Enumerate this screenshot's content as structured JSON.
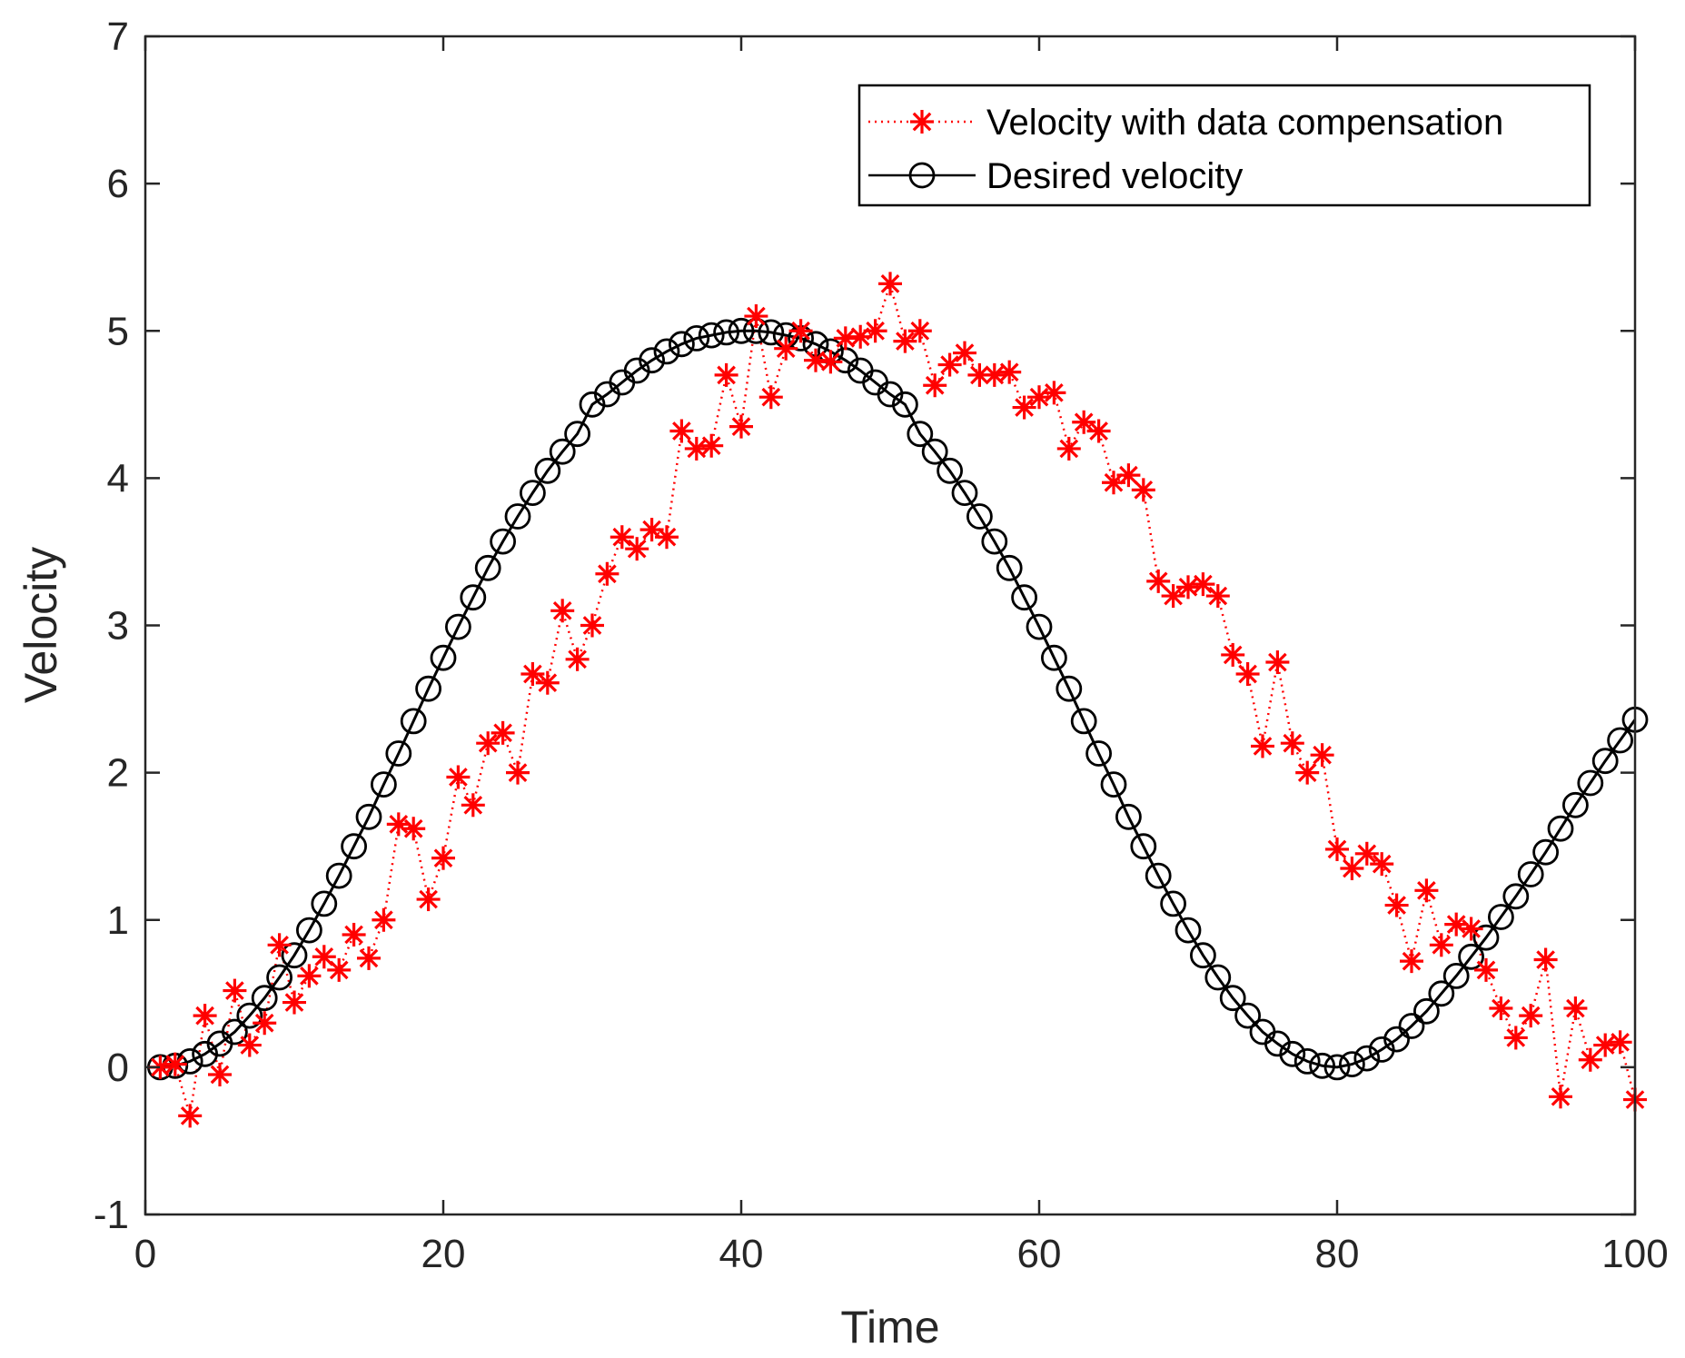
{
  "chart_data": {
    "type": "line",
    "title": "",
    "xlabel": "Time",
    "ylabel": "Velocity",
    "xlim": [
      0,
      100
    ],
    "ylim": [
      -1,
      7
    ],
    "xticks": [
      0,
      20,
      40,
      60,
      80,
      100
    ],
    "xtick_labels": [
      "0",
      "20",
      "40",
      "60",
      "80",
      "100"
    ],
    "yticks": [
      -1,
      0,
      1,
      2,
      3,
      4,
      5,
      6,
      7
    ],
    "ytick_labels": [
      "-1",
      "0",
      "1",
      "2",
      "3",
      "4",
      "5",
      "6",
      "7"
    ],
    "grid": false,
    "legend_position": "top-right",
    "x": [
      1,
      2,
      3,
      4,
      5,
      6,
      7,
      8,
      9,
      10,
      11,
      12,
      13,
      14,
      15,
      16,
      17,
      18,
      19,
      20,
      21,
      22,
      23,
      24,
      25,
      26,
      27,
      28,
      29,
      30,
      31,
      32,
      33,
      34,
      35,
      36,
      37,
      38,
      39,
      40,
      41,
      42,
      43,
      44,
      45,
      46,
      47,
      48,
      49,
      50,
      51,
      52,
      53,
      54,
      55,
      56,
      57,
      58,
      59,
      60,
      61,
      62,
      63,
      64,
      65,
      66,
      67,
      68,
      69,
      70,
      71,
      72,
      73,
      74,
      75,
      76,
      77,
      78,
      79,
      80,
      81,
      82,
      83,
      84,
      85,
      86,
      87,
      88,
      89,
      90,
      91,
      92,
      93,
      94,
      95,
      96,
      97,
      98,
      99,
      100
    ],
    "series": [
      {
        "name": "Velocity with data compensation",
        "color": "#ff0000",
        "line_style": "dotted",
        "marker": "asterisk",
        "values": [
          0.0,
          0.02,
          -0.33,
          0.35,
          -0.05,
          0.52,
          0.15,
          0.3,
          0.83,
          0.44,
          0.62,
          0.75,
          0.66,
          0.9,
          0.74,
          1.0,
          1.65,
          1.62,
          1.14,
          1.42,
          1.97,
          1.78,
          2.2,
          2.27,
          2.0,
          2.67,
          2.61,
          3.1,
          2.77,
          3.0,
          3.35,
          3.6,
          3.52,
          3.65,
          3.6,
          4.32,
          4.2,
          4.22,
          4.7,
          4.35,
          5.1,
          4.55,
          4.88,
          5.0,
          4.8,
          4.79,
          4.95,
          4.96,
          5.0,
          5.32,
          4.93,
          5.0,
          4.63,
          4.77,
          4.85,
          4.7,
          4.7,
          4.72,
          4.48,
          4.55,
          4.58,
          4.2,
          4.38,
          4.32,
          3.97,
          4.02,
          3.92,
          3.3,
          3.2,
          3.26,
          3.28,
          3.2,
          2.8,
          2.67,
          2.18,
          2.75,
          2.2,
          2.0,
          2.12,
          1.48,
          1.35,
          1.45,
          1.38,
          1.1,
          0.72,
          1.2,
          0.83,
          0.97,
          0.94,
          0.66,
          0.4,
          0.2,
          0.35,
          0.73,
          -0.2,
          0.4,
          0.05,
          0.15,
          0.17,
          -0.22
        ]
      },
      {
        "name": "Desired velocity",
        "color": "#000000",
        "line_style": "solid",
        "marker": "circle",
        "values": [
          0.0,
          0.01,
          0.04,
          0.09,
          0.16,
          0.24,
          0.35,
          0.47,
          0.61,
          0.76,
          0.93,
          1.11,
          1.3,
          1.5,
          1.7,
          1.92,
          2.13,
          2.35,
          2.57,
          2.78,
          2.99,
          3.19,
          3.39,
          3.57,
          3.74,
          3.9,
          4.05,
          4.18,
          4.3,
          4.5,
          4.57,
          4.65,
          4.73,
          4.8,
          4.86,
          4.91,
          4.95,
          4.97,
          4.99,
          5.0,
          5.0,
          4.99,
          4.97,
          4.95,
          4.91,
          4.86,
          4.8,
          4.73,
          4.65,
          4.57,
          4.5,
          4.3,
          4.18,
          4.05,
          3.9,
          3.74,
          3.57,
          3.39,
          3.19,
          2.99,
          2.78,
          2.57,
          2.35,
          2.13,
          1.92,
          1.7,
          1.5,
          1.3,
          1.11,
          0.93,
          0.76,
          0.61,
          0.47,
          0.35,
          0.24,
          0.16,
          0.09,
          0.04,
          0.01,
          0.0,
          0.02,
          0.06,
          0.12,
          0.19,
          0.28,
          0.38,
          0.5,
          0.62,
          0.75,
          0.88,
          1.02,
          1.16,
          1.31,
          1.46,
          1.62,
          1.78,
          1.93,
          2.08,
          2.22,
          2.36
        ]
      }
    ]
  }
}
